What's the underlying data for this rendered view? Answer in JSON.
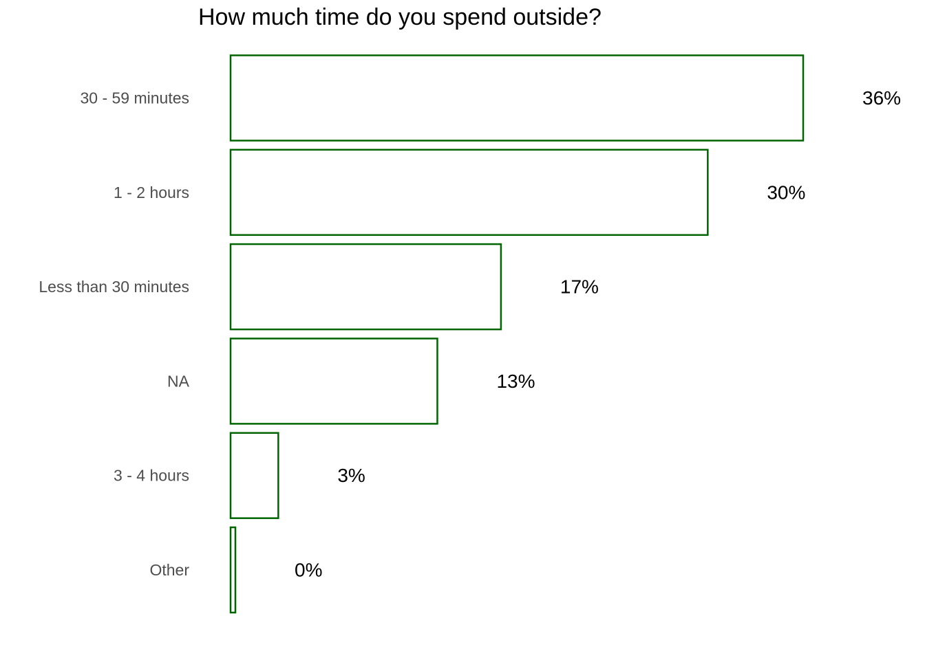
{
  "chart_data": {
    "type": "bar",
    "orientation": "horizontal",
    "title": "How much time do you spend outside?",
    "xlabel": "",
    "ylabel": "",
    "categories": [
      "30 - 59 minutes",
      "1 - 2 hours",
      "Less than 30 minutes",
      "NA",
      "3 - 4 hours",
      "Other"
    ],
    "values": [
      36,
      30,
      17,
      13,
      3,
      0
    ],
    "value_unit": "%",
    "data_labels": [
      "36%",
      "30%",
      "17%",
      "13%",
      "3%",
      "0%"
    ],
    "grid": false,
    "legend": "none",
    "colors": {
      "bar_fill": "#ffffff",
      "bar_outline": "#006400",
      "category_text": "#4d4d4d",
      "label_text": "#000000"
    }
  }
}
